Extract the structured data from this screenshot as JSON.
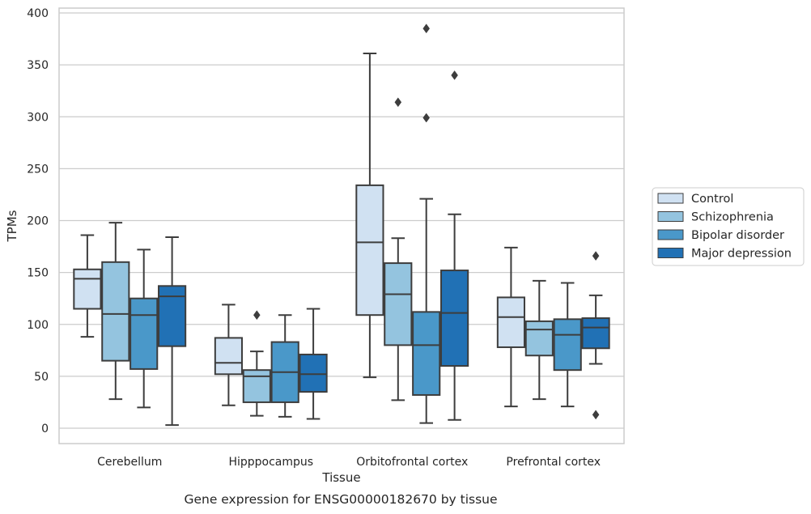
{
  "chart_data": {
    "type": "box",
    "title": "",
    "caption": "Gene expression for ENSG00000182670 by tissue",
    "xlabel": "Tissue",
    "ylabel": "TPMs",
    "ylim": [
      -15,
      400
    ],
    "yticks": [
      0,
      50,
      100,
      150,
      200,
      250,
      300,
      350,
      400
    ],
    "categories": [
      "Cerebellum",
      "Hipppocampus",
      "Orbitofrontal cortex",
      "Prefrontal cortex"
    ],
    "grid": "horizontal",
    "legend_position": "right",
    "series": [
      {
        "name": "Control",
        "color": "#d0e1f2",
        "boxes": [
          {
            "whislo": 88,
            "q1": 115,
            "med": 144,
            "q3": 153,
            "whishi": 186,
            "fliers": []
          },
          {
            "whislo": 22,
            "q1": 52,
            "med": 63,
            "q3": 87,
            "whishi": 119,
            "fliers": []
          },
          {
            "whislo": 49,
            "q1": 109,
            "med": 179,
            "q3": 234,
            "whishi": 361,
            "fliers": []
          },
          {
            "whislo": 21,
            "q1": 78,
            "med": 107,
            "q3": 126,
            "whishi": 174,
            "fliers": []
          }
        ]
      },
      {
        "name": "Schizophrenia",
        "color": "#94c4df",
        "boxes": [
          {
            "whislo": 28,
            "q1": 65,
            "med": 110,
            "q3": 160,
            "whishi": 198,
            "fliers": []
          },
          {
            "whislo": 12,
            "q1": 25,
            "med": 50,
            "q3": 56,
            "whishi": 74,
            "fliers": [
              109
            ]
          },
          {
            "whislo": 27,
            "q1": 80,
            "med": 129,
            "q3": 159,
            "whishi": 183,
            "fliers": [
              314
            ]
          },
          {
            "whislo": 28,
            "q1": 70,
            "med": 95,
            "q3": 103,
            "whishi": 142,
            "fliers": []
          }
        ]
      },
      {
        "name": "Bipolar disorder",
        "color": "#4a98c9",
        "boxes": [
          {
            "whislo": 20,
            "q1": 57,
            "med": 109,
            "q3": 125,
            "whishi": 172,
            "fliers": []
          },
          {
            "whislo": 11,
            "q1": 25,
            "med": 54,
            "q3": 83,
            "whishi": 109,
            "fliers": []
          },
          {
            "whislo": 5,
            "q1": 32,
            "med": 80,
            "q3": 112,
            "whishi": 221,
            "fliers": [
              299,
              385
            ]
          },
          {
            "whislo": 21,
            "q1": 56,
            "med": 90,
            "q3": 105,
            "whishi": 140,
            "fliers": []
          }
        ]
      },
      {
        "name": "Major depression",
        "color": "#2171b5",
        "boxes": [
          {
            "whislo": 3,
            "q1": 79,
            "med": 127,
            "q3": 137,
            "whishi": 184,
            "fliers": []
          },
          {
            "whislo": 9,
            "q1": 35,
            "med": 52,
            "q3": 71,
            "whishi": 115,
            "fliers": []
          },
          {
            "whislo": 8,
            "q1": 60,
            "med": 111,
            "q3": 152,
            "whishi": 206,
            "fliers": [
              340
            ]
          },
          {
            "whislo": 62,
            "q1": 77,
            "med": 97,
            "q3": 106,
            "whishi": 128,
            "fliers": [
              13,
              166
            ]
          }
        ]
      }
    ]
  }
}
